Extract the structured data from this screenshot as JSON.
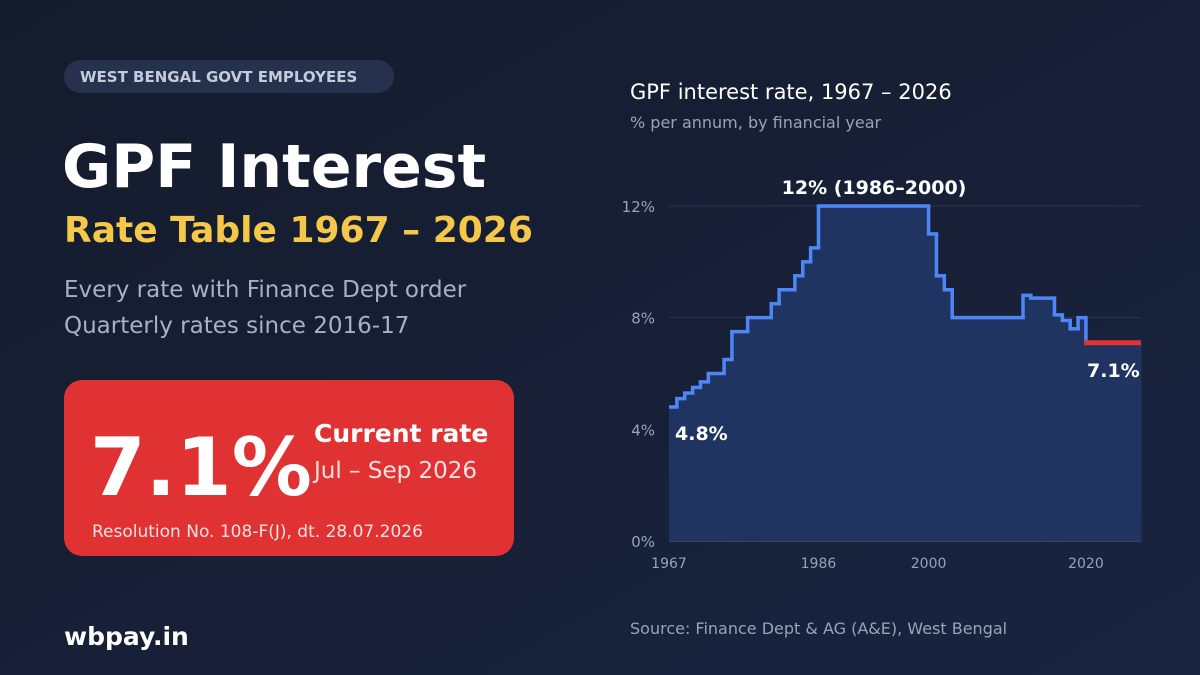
{
  "badge": "WEST BENGAL GOVT EMPLOYEES",
  "headline": "GPF Interest",
  "subheadline": "Rate Table 1967 – 2026",
  "description": [
    "Every rate with Finance Dept order",
    "Quarterly rates since 2016-17"
  ],
  "current": {
    "rate": "7.1%",
    "label": "Current rate",
    "period": "Jul – Sep 2026",
    "order": "Resolution No. 108-F(J), dt. 28.07.2026"
  },
  "site": "wbpay.in",
  "chart_data": {
    "type": "step",
    "title": "GPF interest rate, 1967 – 2026",
    "subtitle": "% per annum, by financial year",
    "source": "Source: Finance Dept & AG (A&E), West Bengal",
    "x": [
      1967,
      1968,
      1969,
      1970,
      1971,
      1972,
      1974,
      1975,
      1977,
      1980,
      1981,
      1983,
      1984,
      1985,
      1986,
      2000,
      2001,
      2002,
      2003,
      2012,
      2013,
      2016,
      2017,
      2018,
      2019,
      2020
    ],
    "values": [
      4.8,
      5.1,
      5.3,
      5.5,
      5.7,
      6.0,
      6.5,
      7.5,
      8.0,
      8.5,
      9.0,
      9.5,
      10.0,
      10.5,
      12,
      11,
      9.5,
      9.0,
      8.0,
      8.8,
      8.7,
      8.1,
      7.9,
      7.6,
      8.0,
      7.1
    ],
    "color": "#4f86f7",
    "area_color": "#1f3461",
    "current_color": "#e03434",
    "xlim": [
      1967,
      2027
    ],
    "ylim": [
      0,
      12
    ],
    "xticks": [
      1967,
      1986,
      2000,
      2020
    ],
    "yticks": [
      {
        "value": 0,
        "label": "0%"
      },
      {
        "value": 4,
        "label": "4%"
      },
      {
        "value": 8,
        "label": "8%"
      },
      {
        "value": 12,
        "label": "12%"
      }
    ],
    "grid": true,
    "annotations": [
      "12% (1986–2000)",
      "4.8%",
      "7.1%"
    ]
  }
}
